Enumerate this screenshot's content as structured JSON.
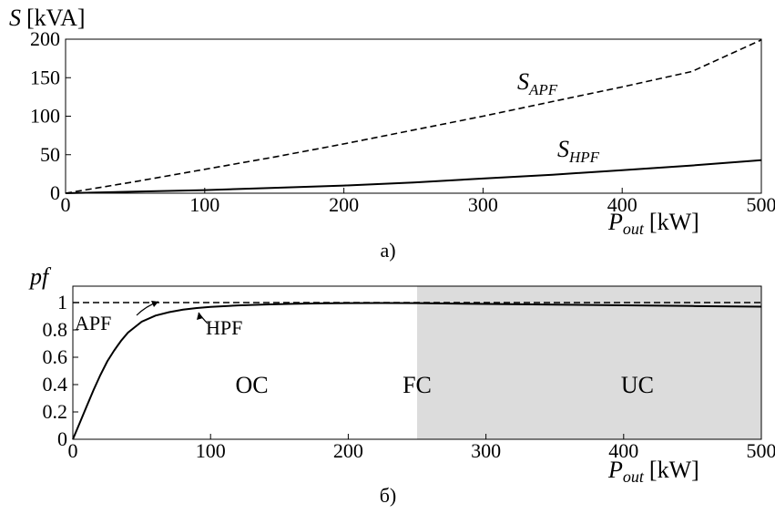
{
  "chart_data": [
    {
      "type": "line",
      "subfigure_label": "a)",
      "xlabel": {
        "symbol": "P",
        "subscript": "out",
        "unit": "[kW]"
      },
      "ylabel": {
        "symbol": "S",
        "unit": "[kVA]"
      },
      "xlim": [
        0,
        500
      ],
      "ylim": [
        0,
        200
      ],
      "x_ticks": [
        "0",
        "100",
        "200",
        "300",
        "400",
        "500"
      ],
      "y_ticks": [
        "0",
        "50",
        "100",
        "150",
        "200"
      ],
      "grid": false,
      "series": [
        {
          "name": "APF",
          "label_main": "S",
          "label_sub": "APF",
          "style": "dashed",
          "x": [
            0,
            50,
            100,
            150,
            200,
            250,
            300,
            350,
            400,
            450,
            500
          ],
          "y": [
            0,
            15,
            31,
            47,
            64,
            82,
            100,
            119,
            138,
            158,
            199
          ]
        },
        {
          "name": "HPF",
          "label_main": "S",
          "label_sub": "HPF",
          "style": "solid",
          "x": [
            0,
            50,
            100,
            150,
            200,
            250,
            300,
            350,
            400,
            450,
            500
          ],
          "y": [
            0,
            2,
            4,
            7,
            10,
            14,
            19,
            24,
            30,
            36,
            43
          ]
        }
      ]
    },
    {
      "type": "line",
      "subfigure_label": "б)",
      "xlabel": {
        "symbol": "P",
        "subscript": "out",
        "unit": "[kW]"
      },
      "ylabel": {
        "symbol": "pf",
        "unit": ""
      },
      "xlim": [
        0,
        500
      ],
      "ylim": [
        0,
        1.12
      ],
      "x_ticks": [
        "0",
        "100",
        "200",
        "300",
        "400",
        "500"
      ],
      "y_ticks": [
        "0",
        "0.2",
        "0.4",
        "0.6",
        "0.8",
        "1"
      ],
      "grid": false,
      "shaded_region": {
        "x_from": 250,
        "x_to": 500,
        "color": "#dcdcdc"
      },
      "regions": [
        {
          "label": "OC",
          "x": 130,
          "y": 0.34
        },
        {
          "label": "FC",
          "x": 250,
          "y": 0.34
        },
        {
          "label": "UC",
          "x": 410,
          "y": 0.34
        }
      ],
      "series": [
        {
          "name": "APF",
          "style": "dashed",
          "x": [
            0,
            500
          ],
          "y": [
            1,
            1
          ]
        },
        {
          "name": "HPF",
          "style": "solid",
          "x": [
            0,
            5,
            10,
            15,
            20,
            25,
            30,
            35,
            40,
            45,
            50,
            60,
            70,
            80,
            90,
            100,
            120,
            140,
            160,
            180,
            200,
            225,
            250,
            300,
            350,
            400,
            450,
            500
          ],
          "y": [
            0,
            0.12,
            0.24,
            0.36,
            0.47,
            0.57,
            0.65,
            0.72,
            0.78,
            0.82,
            0.86,
            0.905,
            0.93,
            0.948,
            0.96,
            0.968,
            0.979,
            0.986,
            0.991,
            0.994,
            0.996,
            0.997,
            0.996,
            0.99,
            0.985,
            0.98,
            0.975,
            0.97
          ]
        }
      ],
      "annotations": [
        {
          "label": "APF",
          "target_series": "APF"
        },
        {
          "label": "HPF",
          "target_series": "HPF"
        }
      ]
    }
  ],
  "colors": {
    "line": "#000000",
    "shade": "#dcdcdc",
    "background": "#ffffff"
  }
}
